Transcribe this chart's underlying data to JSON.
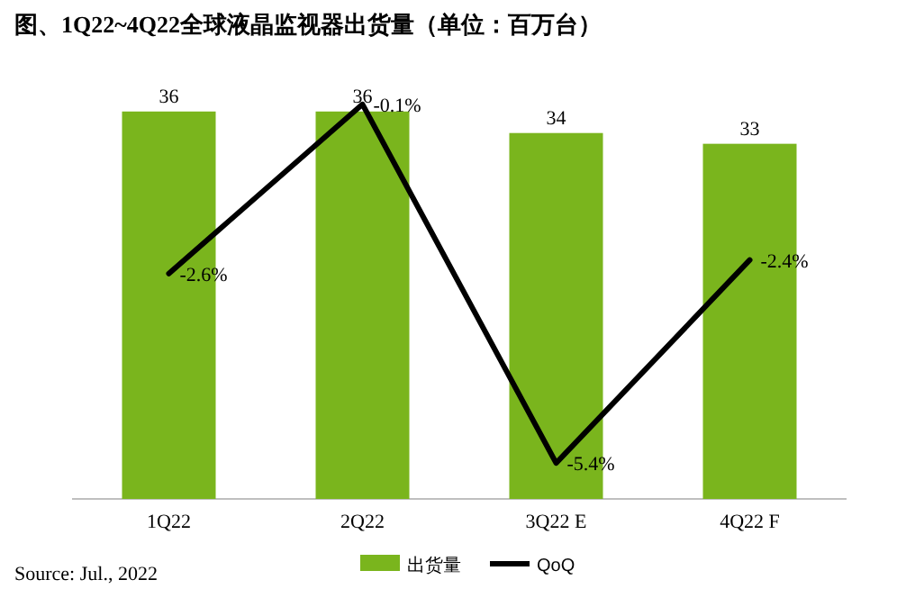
{
  "chart_data": {
    "type": "bar",
    "title": "图、1Q22~4Q22全球液晶监视器出货量（单位：百万台）",
    "categories": [
      "1Q22",
      "2Q22",
      "3Q22 E",
      "4Q22 F"
    ],
    "series": [
      {
        "name": "出货量",
        "color": "#7ab51d",
        "values": [
          36,
          36,
          34,
          33
        ],
        "value_labels": [
          "36",
          "36",
          "34",
          "33"
        ]
      },
      {
        "name": "QoQ",
        "type": "line",
        "axis": "y2",
        "color": "#000000",
        "values": [
          -2.6,
          -0.1,
          -5.4,
          -2.4
        ],
        "value_labels": [
          "-2.6%",
          "-0.1%",
          "-5.4%",
          "-2.4%"
        ]
      }
    ],
    "tick_labels": "x",
    "legend": "bottom",
    "annotations": [
      "Source: Jul., 2022"
    ]
  }
}
